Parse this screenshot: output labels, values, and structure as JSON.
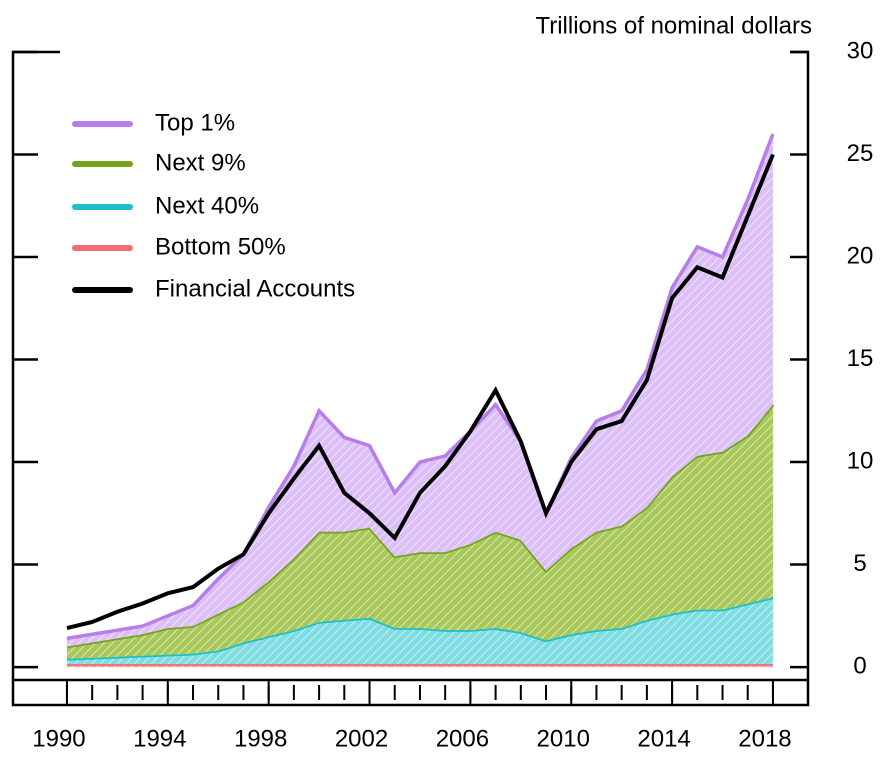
{
  "chart_data": {
    "type": "stacked_area",
    "title": "Trillions of nominal dollars",
    "x": [
      1990,
      1991,
      1992,
      1993,
      1994,
      1995,
      1996,
      1997,
      1998,
      1999,
      2000,
      2001,
      2002,
      2003,
      2004,
      2005,
      2006,
      2007,
      2008,
      2009,
      2010,
      2011,
      2012,
      2013,
      2014,
      2015,
      2016,
      2017,
      2018
    ],
    "series": [
      {
        "name": "Top 1%",
        "color": "#b57ee8",
        "fill": "#dcbff7",
        "values": [
          0.4,
          0.4,
          0.4,
          0.4,
          0.6,
          1.0,
          1.7,
          2.3,
          3.6,
          4.5,
          5.9,
          4.6,
          4.0,
          3.1,
          4.4,
          4.7,
          5.5,
          6.2,
          4.8,
          2.8,
          4.4,
          5.4,
          5.6,
          6.7,
          9.2,
          10.2,
          9.5,
          11.5,
          13.2
        ]
      },
      {
        "name": "Next 9%",
        "color": "#77a21e",
        "fill": "#a9c85a",
        "values": [
          0.6,
          0.75,
          0.9,
          1.05,
          1.3,
          1.35,
          1.8,
          2.0,
          2.7,
          3.5,
          4.4,
          4.3,
          4.4,
          3.5,
          3.7,
          3.8,
          4.2,
          4.7,
          4.5,
          3.4,
          4.2,
          4.8,
          5.0,
          5.5,
          6.7,
          7.5,
          7.7,
          8.2,
          9.4
        ]
      },
      {
        "name": "Next 40%",
        "color": "#1fbfc7",
        "fill": "#7fdde2",
        "values": [
          0.25,
          0.3,
          0.35,
          0.4,
          0.45,
          0.5,
          0.65,
          1.05,
          1.35,
          1.65,
          2.05,
          2.15,
          2.25,
          1.75,
          1.75,
          1.65,
          1.65,
          1.75,
          1.55,
          1.15,
          1.45,
          1.65,
          1.75,
          2.15,
          2.45,
          2.65,
          2.65,
          2.95,
          3.25
        ]
      },
      {
        "name": "Bottom 50%",
        "color": "#f07070",
        "fill": "#f5a0a0",
        "values": [
          0.15,
          0.15,
          0.15,
          0.15,
          0.15,
          0.15,
          0.15,
          0.15,
          0.15,
          0.15,
          0.15,
          0.15,
          0.15,
          0.15,
          0.15,
          0.15,
          0.15,
          0.15,
          0.15,
          0.15,
          0.15,
          0.15,
          0.15,
          0.15,
          0.15,
          0.15,
          0.15,
          0.15,
          0.15
        ]
      }
    ],
    "line_series": {
      "name": "Financial Accounts",
      "color": "#000000",
      "values": [
        1.9,
        2.2,
        2.7,
        3.1,
        3.6,
        3.9,
        4.8,
        5.5,
        7.5,
        9.2,
        10.8,
        8.5,
        7.5,
        6.3,
        8.5,
        9.8,
        11.5,
        13.5,
        11.0,
        7.5,
        10.0,
        11.6,
        12.0,
        14.0,
        18.0,
        19.5,
        19.0,
        22.0,
        25.0
      ]
    },
    "xlim": [
      1987.86,
      2019.39
    ],
    "xticks": [
      1990,
      1994,
      1998,
      2002,
      2006,
      2010,
      2014,
      2018
    ],
    "ylim": [
      -1.85,
      30
    ],
    "yticks": [
      0,
      5,
      10,
      15,
      20,
      25,
      30
    ]
  }
}
